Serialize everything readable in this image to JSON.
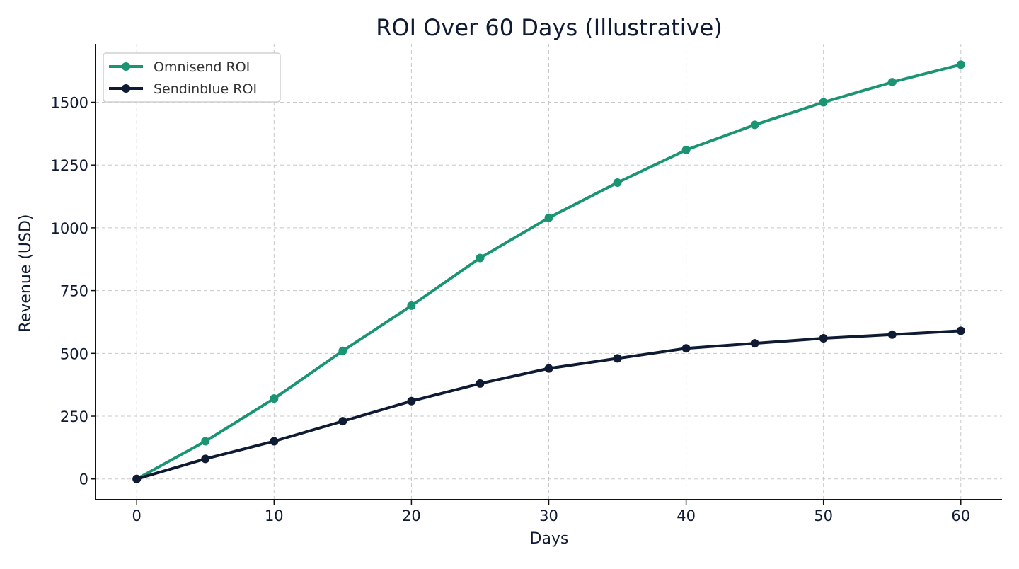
{
  "colors": {
    "background": "#ffffff",
    "text": "#0f1a33",
    "axis": "#111111",
    "grid": "#c8c8c8",
    "omnisend": "#1a9473",
    "sendinblue": "#0f1a33",
    "legend_border": "#d0d0d0",
    "legend_text": "#333333"
  },
  "chart_data": {
    "type": "line",
    "title": "ROI Over 60 Days (Illustrative)",
    "xlabel": "Days",
    "ylabel": "Revenue (USD)",
    "x": [
      0,
      5,
      10,
      15,
      20,
      25,
      30,
      35,
      40,
      45,
      50,
      55,
      60
    ],
    "series": [
      {
        "name": "Omnisend ROI",
        "color": "#1a9473",
        "marker": "circle",
        "values": [
          0,
          150,
          320,
          510,
          690,
          880,
          1040,
          1180,
          1310,
          1410,
          1500,
          1580,
          1650
        ]
      },
      {
        "name": "Sendinblue ROI",
        "color": "#0f1a33",
        "marker": "circle",
        "values": [
          0,
          80,
          150,
          230,
          310,
          380,
          440,
          480,
          520,
          540,
          560,
          575,
          590
        ]
      }
    ],
    "xticks": [
      0,
      10,
      20,
      30,
      40,
      50,
      60
    ],
    "yticks": [
      0,
      250,
      500,
      750,
      1000,
      1250,
      1500
    ],
    "xlim": [
      -3,
      63
    ],
    "ylim": [
      -82.5,
      1732.5
    ],
    "grid": true,
    "grid_style": "dashed",
    "legend_position": "upper left"
  }
}
